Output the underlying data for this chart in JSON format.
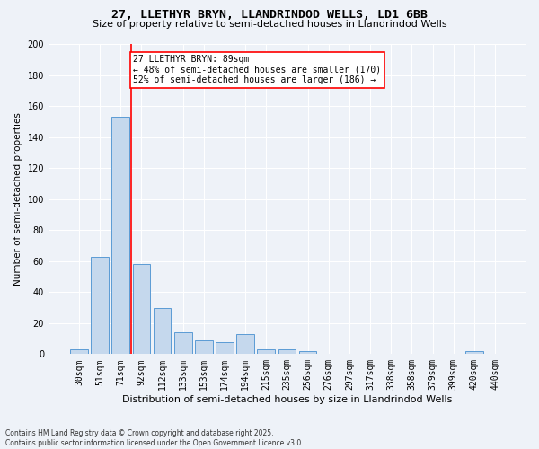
{
  "title": "27, LLETHYR BRYN, LLANDRINDOD WELLS, LD1 6BB",
  "subtitle": "Size of property relative to semi-detached houses in Llandrindod Wells",
  "xlabel": "Distribution of semi-detached houses by size in Llandrindod Wells",
  "ylabel": "Number of semi-detached properties",
  "categories": [
    "30sqm",
    "51sqm",
    "71sqm",
    "92sqm",
    "112sqm",
    "133sqm",
    "153sqm",
    "174sqm",
    "194sqm",
    "215sqm",
    "235sqm",
    "256sqm",
    "276sqm",
    "297sqm",
    "317sqm",
    "338sqm",
    "358sqm",
    "379sqm",
    "399sqm",
    "420sqm",
    "440sqm"
  ],
  "values": [
    3,
    63,
    153,
    58,
    30,
    14,
    9,
    8,
    13,
    3,
    3,
    2,
    0,
    0,
    0,
    0,
    0,
    0,
    0,
    2,
    0
  ],
  "bar_color": "#c5d8ed",
  "bar_edge_color": "#5b9bd5",
  "vline_color": "red",
  "vline_x": 2.5,
  "annotation_title": "27 LLETHYR BRYN: 89sqm",
  "annotation_line1": "← 48% of semi-detached houses are smaller (170)",
  "annotation_line2": "52% of semi-detached houses are larger (186) →",
  "annotation_box_color": "white",
  "annotation_box_edge_color": "red",
  "background_color": "#eef2f8",
  "grid_color": "white",
  "footnote": "Contains HM Land Registry data © Crown copyright and database right 2025.\nContains public sector information licensed under the Open Government Licence v3.0.",
  "ylim": [
    0,
    200
  ],
  "yticks": [
    0,
    20,
    40,
    60,
    80,
    100,
    120,
    140,
    160,
    180,
    200
  ],
  "title_fontsize": 9.5,
  "subtitle_fontsize": 8,
  "ylabel_fontsize": 7.5,
  "xlabel_fontsize": 8,
  "tick_fontsize": 7,
  "annot_fontsize": 7,
  "footnote_fontsize": 5.5
}
